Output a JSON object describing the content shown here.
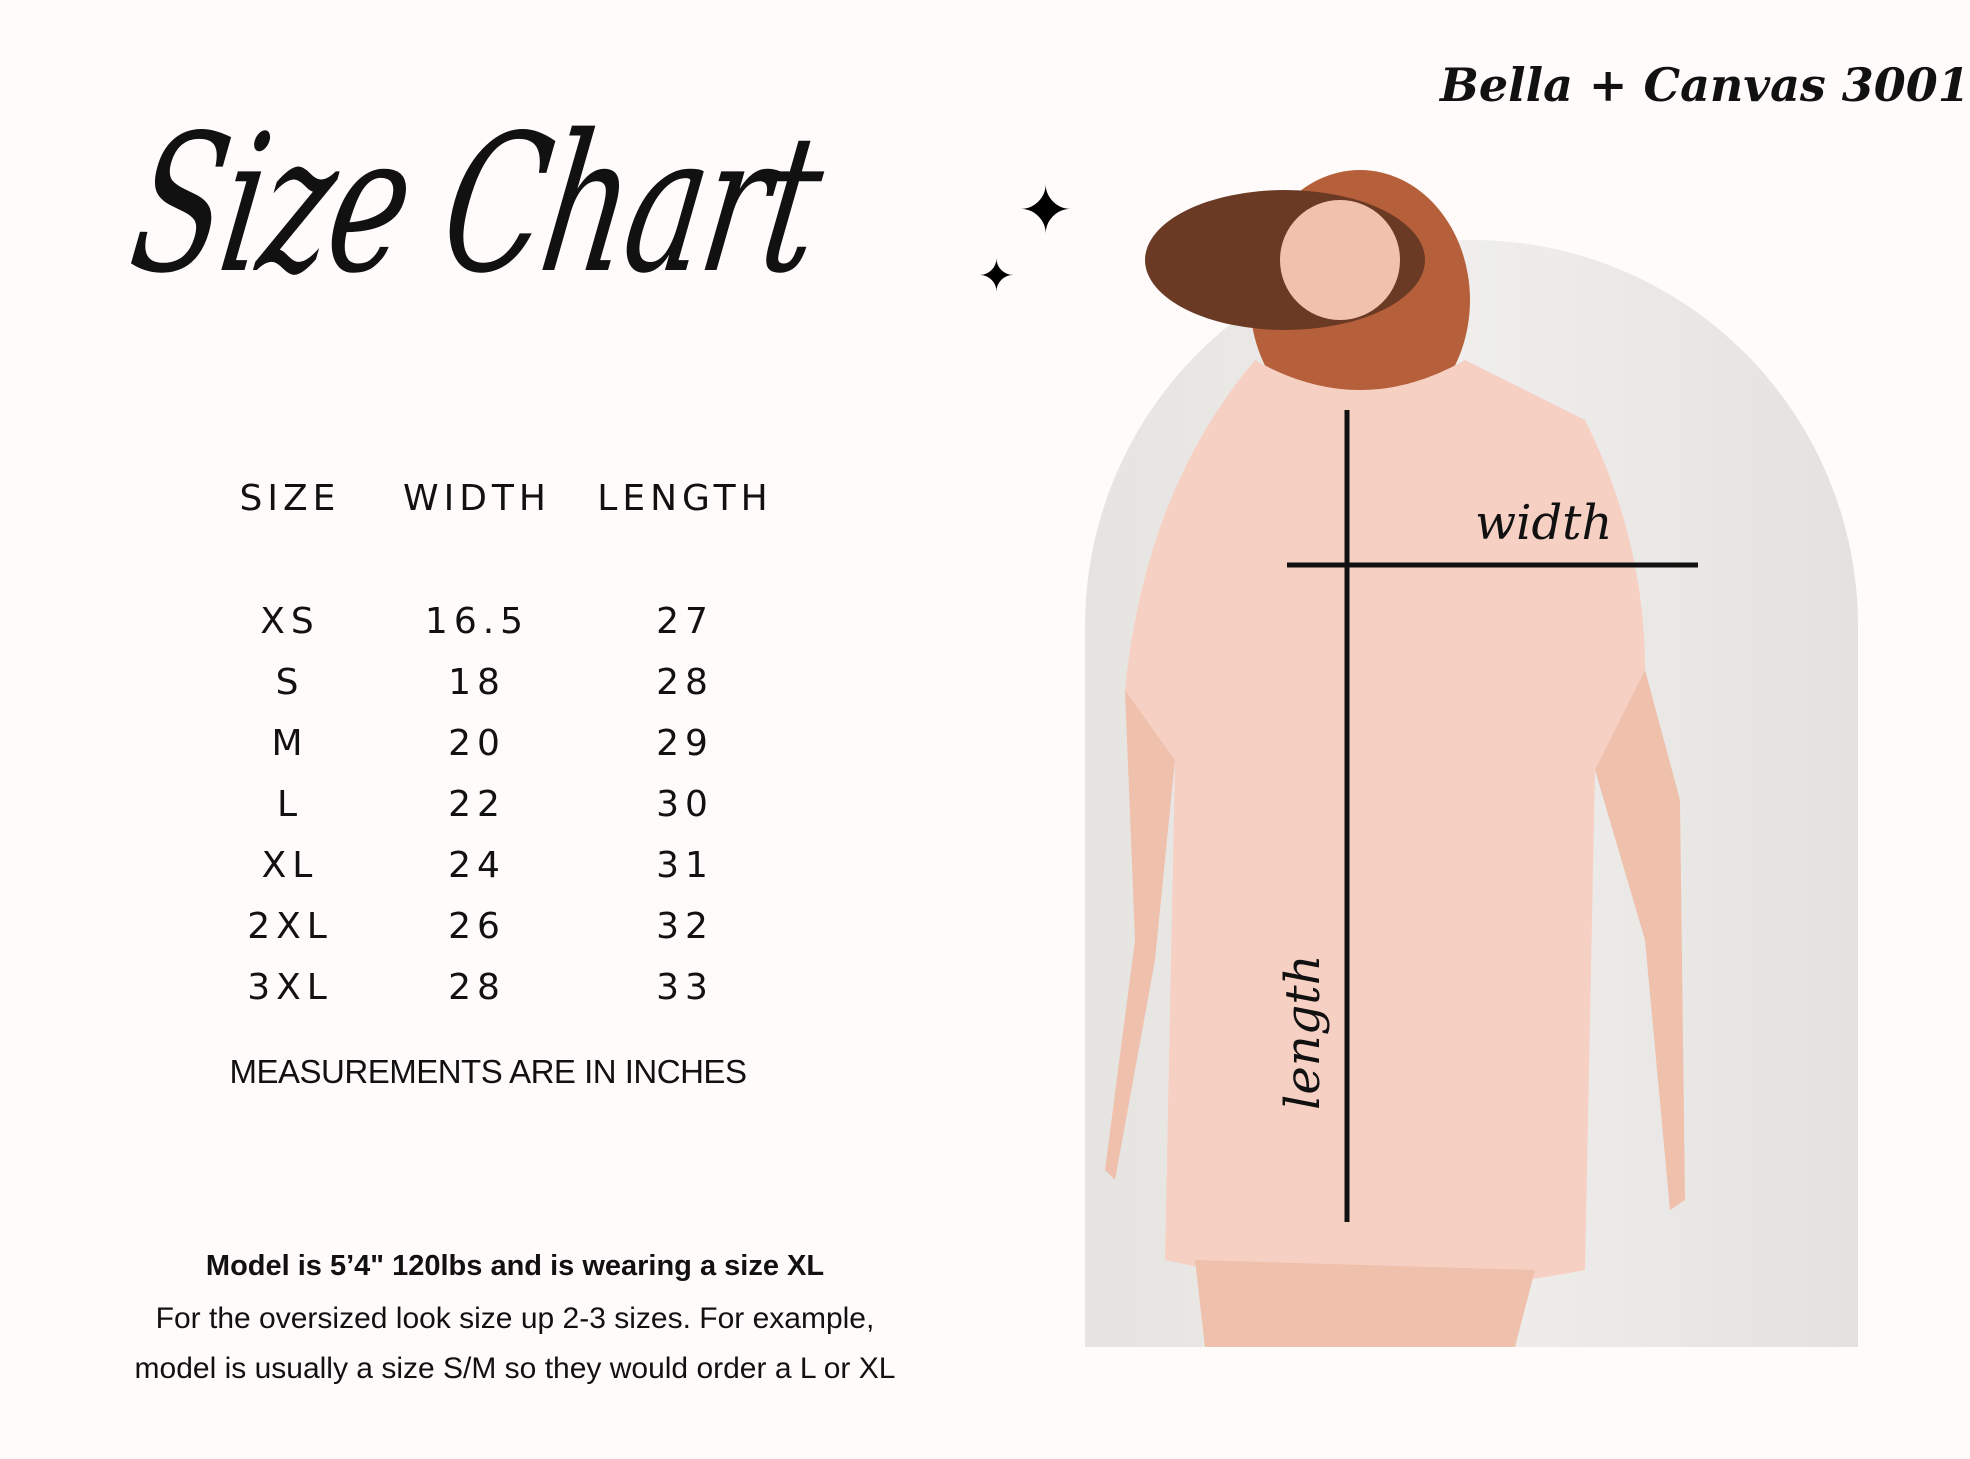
{
  "title": "Size Chart",
  "brand": "Bella + Canvas 3001",
  "table": {
    "headers": [
      "SIZE",
      "WIDTH",
      "LENGTH"
    ],
    "rows": [
      [
        "XS",
        "16.5",
        "27"
      ],
      [
        "S",
        "18",
        "28"
      ],
      [
        "M",
        "20",
        "29"
      ],
      [
        "L",
        "22",
        "30"
      ],
      [
        "XL",
        "24",
        "31"
      ],
      [
        "2XL",
        "26",
        "32"
      ],
      [
        "3XL",
        "28",
        "33"
      ]
    ]
  },
  "note": "MEASUREMENTS ARE IN INCHES",
  "model": {
    "headline": "Model is 5’4\" 120lbs and is wearing a size XL",
    "line1": "For the oversized look size up 2-3 sizes. For example,",
    "line2": "model is usually a size S/M so they would order a L or XL"
  },
  "photo": {
    "width_label": "width",
    "length_label": "length",
    "shirt_color": "#f7d0c4"
  },
  "icons": [
    "sparkle-star-icon"
  ]
}
